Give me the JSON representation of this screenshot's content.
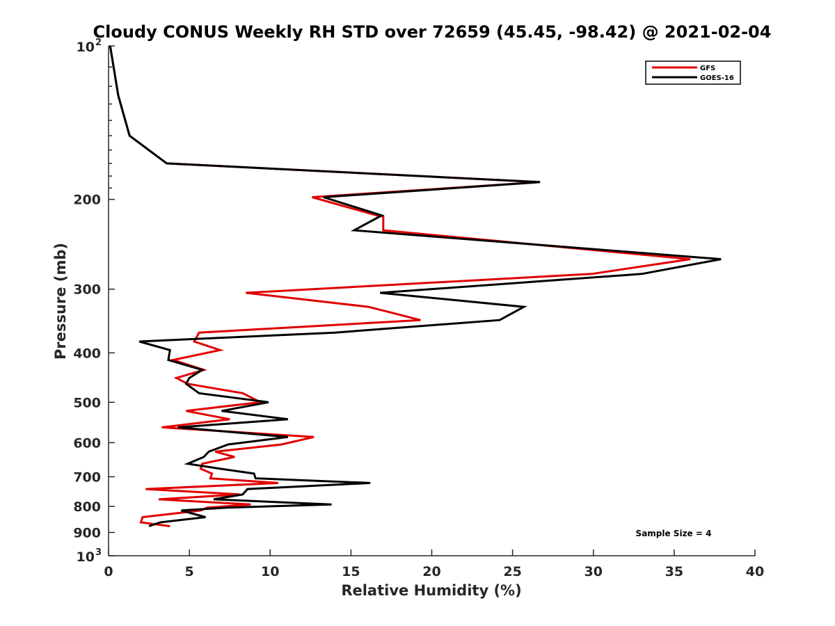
{
  "chart_data": {
    "type": "line",
    "title": "Cloudy CONUS Weekly RH STD over 72659 (45.45, -98.42) @ 2021-02-04",
    "xlabel": "Relative Humidity (%)",
    "ylabel": "Pressure (mb)",
    "xlim": [
      0,
      40
    ],
    "ylim": [
      100,
      1000
    ],
    "yscale": "log",
    "y_reversed": true,
    "grid": false,
    "legend_position": "top-right",
    "x_ticks": [
      "0",
      "5",
      "10",
      "15",
      "20",
      "25",
      "30",
      "35",
      "40"
    ],
    "y_ticks": [
      {
        "value": 100,
        "base": "10",
        "exp": "2"
      },
      {
        "value": 200,
        "label": "200"
      },
      {
        "value": 300,
        "label": "300"
      },
      {
        "value": 400,
        "label": "400"
      },
      {
        "value": 500,
        "label": "500"
      },
      {
        "value": 600,
        "label": "600"
      },
      {
        "value": 700,
        "label": "700"
      },
      {
        "value": 800,
        "label": "800"
      },
      {
        "value": 900,
        "label": "900"
      },
      {
        "value": 1000,
        "base": "10",
        "exp": "3"
      }
    ],
    "series": [
      {
        "name": "GFS",
        "color": "#e00000",
        "points": [
          [
            0.1,
            100
          ],
          [
            0.6,
            125
          ],
          [
            1.3,
            150
          ],
          [
            3.6,
            170
          ],
          [
            26.7,
            185
          ],
          [
            12.6,
            198
          ],
          [
            16.6,
            215
          ],
          [
            17.0,
            216
          ],
          [
            17.0,
            230
          ],
          [
            36.0,
            262
          ],
          [
            29.9,
            280
          ],
          [
            8.5,
            305
          ],
          [
            16.1,
            325
          ],
          [
            19.3,
            345
          ],
          [
            5.6,
            365
          ],
          [
            5.3,
            380
          ],
          [
            6.9,
            395
          ],
          [
            4.0,
            413
          ],
          [
            5.9,
            432
          ],
          [
            4.2,
            448
          ],
          [
            4.9,
            460
          ],
          [
            8.3,
            480
          ],
          [
            9.4,
            500
          ],
          [
            4.8,
            520
          ],
          [
            7.5,
            540
          ],
          [
            3.3,
            560
          ],
          [
            12.7,
            585
          ],
          [
            10.7,
            605
          ],
          [
            6.6,
            625
          ],
          [
            7.8,
            640
          ],
          [
            5.8,
            660
          ],
          [
            5.7,
            675
          ],
          [
            6.4,
            690
          ],
          [
            6.3,
            705
          ],
          [
            10.5,
            720
          ],
          [
            2.3,
            740
          ],
          [
            8.1,
            758
          ],
          [
            3.1,
            775
          ],
          [
            8.8,
            793
          ],
          [
            6.1,
            805
          ],
          [
            5.7,
            815
          ],
          [
            2.1,
            840
          ],
          [
            2.0,
            860
          ],
          [
            3.8,
            875
          ]
        ]
      },
      {
        "name": "GOES-16",
        "color": "#000000",
        "points": [
          [
            0.1,
            100
          ],
          [
            0.6,
            125
          ],
          [
            1.3,
            150
          ],
          [
            3.6,
            170
          ],
          [
            26.7,
            185
          ],
          [
            13.3,
            198
          ],
          [
            16.9,
            215
          ],
          [
            15.2,
            230
          ],
          [
            37.9,
            262
          ],
          [
            33.0,
            280
          ],
          [
            16.8,
            305
          ],
          [
            25.7,
            325
          ],
          [
            24.2,
            345
          ],
          [
            14.0,
            365
          ],
          [
            1.9,
            380
          ],
          [
            3.8,
            395
          ],
          [
            3.7,
            413
          ],
          [
            5.8,
            432
          ],
          [
            5.0,
            448
          ],
          [
            4.8,
            460
          ],
          [
            5.6,
            480
          ],
          [
            9.9,
            500
          ],
          [
            7.0,
            520
          ],
          [
            11.1,
            540
          ],
          [
            4.3,
            560
          ],
          [
            11.1,
            585
          ],
          [
            7.4,
            605
          ],
          [
            6.2,
            625
          ],
          [
            5.9,
            640
          ],
          [
            4.9,
            660
          ],
          [
            6.9,
            675
          ],
          [
            9.0,
            690
          ],
          [
            9.1,
            705
          ],
          [
            16.2,
            720
          ],
          [
            8.6,
            740
          ],
          [
            8.3,
            758
          ],
          [
            6.5,
            775
          ],
          [
            13.8,
            793
          ],
          [
            7.3,
            805
          ],
          [
            4.5,
            815
          ],
          [
            6.0,
            840
          ],
          [
            3.2,
            860
          ],
          [
            2.5,
            875
          ]
        ]
      }
    ],
    "legend": [
      "GFS",
      "GOES-16"
    ],
    "annotation": "Sample Size = 4"
  }
}
